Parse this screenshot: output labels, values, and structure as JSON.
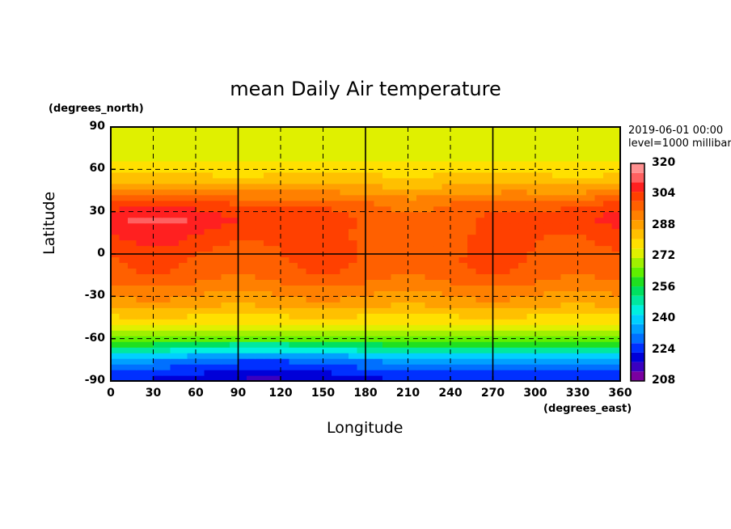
{
  "chart_data": {
    "type": "heatmap",
    "title": "mean Daily Air temperature",
    "xlabel": "Longitude",
    "ylabel": "Latitude",
    "x_units": "(degrees_east)",
    "y_units": "(degrees_north)",
    "date_label": "2019-06-01 00:00",
    "level_label": "level=1000 millibar",
    "xlim": [
      0,
      360
    ],
    "ylim": [
      -90,
      90
    ],
    "x_ticks": [
      "0",
      "30",
      "60",
      "90",
      "120",
      "150",
      "180",
      "210",
      "240",
      "270",
      "300",
      "330",
      "360"
    ],
    "y_ticks": [
      "90",
      "60",
      "30",
      "0",
      "-30",
      "-60",
      "-90"
    ],
    "colorbar_ticks": [
      "320",
      "304",
      "288",
      "272",
      "256",
      "240",
      "224",
      "208"
    ],
    "colorbar_range": [
      208,
      320
    ],
    "gridlines": "dashed every 30 degrees",
    "zonal_profile": {
      "latitudes": [
        -90,
        -75,
        -65,
        -55,
        -45,
        -35,
        -25,
        -15,
        0,
        15,
        25,
        35,
        45,
        55,
        65,
        75,
        90
      ],
      "values": [
        222,
        234,
        256,
        272,
        280,
        288,
        293,
        298,
        300,
        302,
        304,
        300,
        290,
        282,
        276,
        274,
        272
      ]
    }
  },
  "colors": {
    "colorbar": [
      "#7a00a0",
      "#3a00c0",
      "#0000d8",
      "#0030ff",
      "#0070ff",
      "#00a0ff",
      "#00d0ff",
      "#00f0e0",
      "#00e8a0",
      "#00e060",
      "#20e020",
      "#60f000",
      "#a0f000",
      "#e0f000",
      "#ffe000",
      "#ffc000",
      "#ffa000",
      "#ff8000",
      "#ff6000",
      "#ff4000",
      "#ff2020",
      "#ff6060",
      "#ff9090"
    ]
  }
}
